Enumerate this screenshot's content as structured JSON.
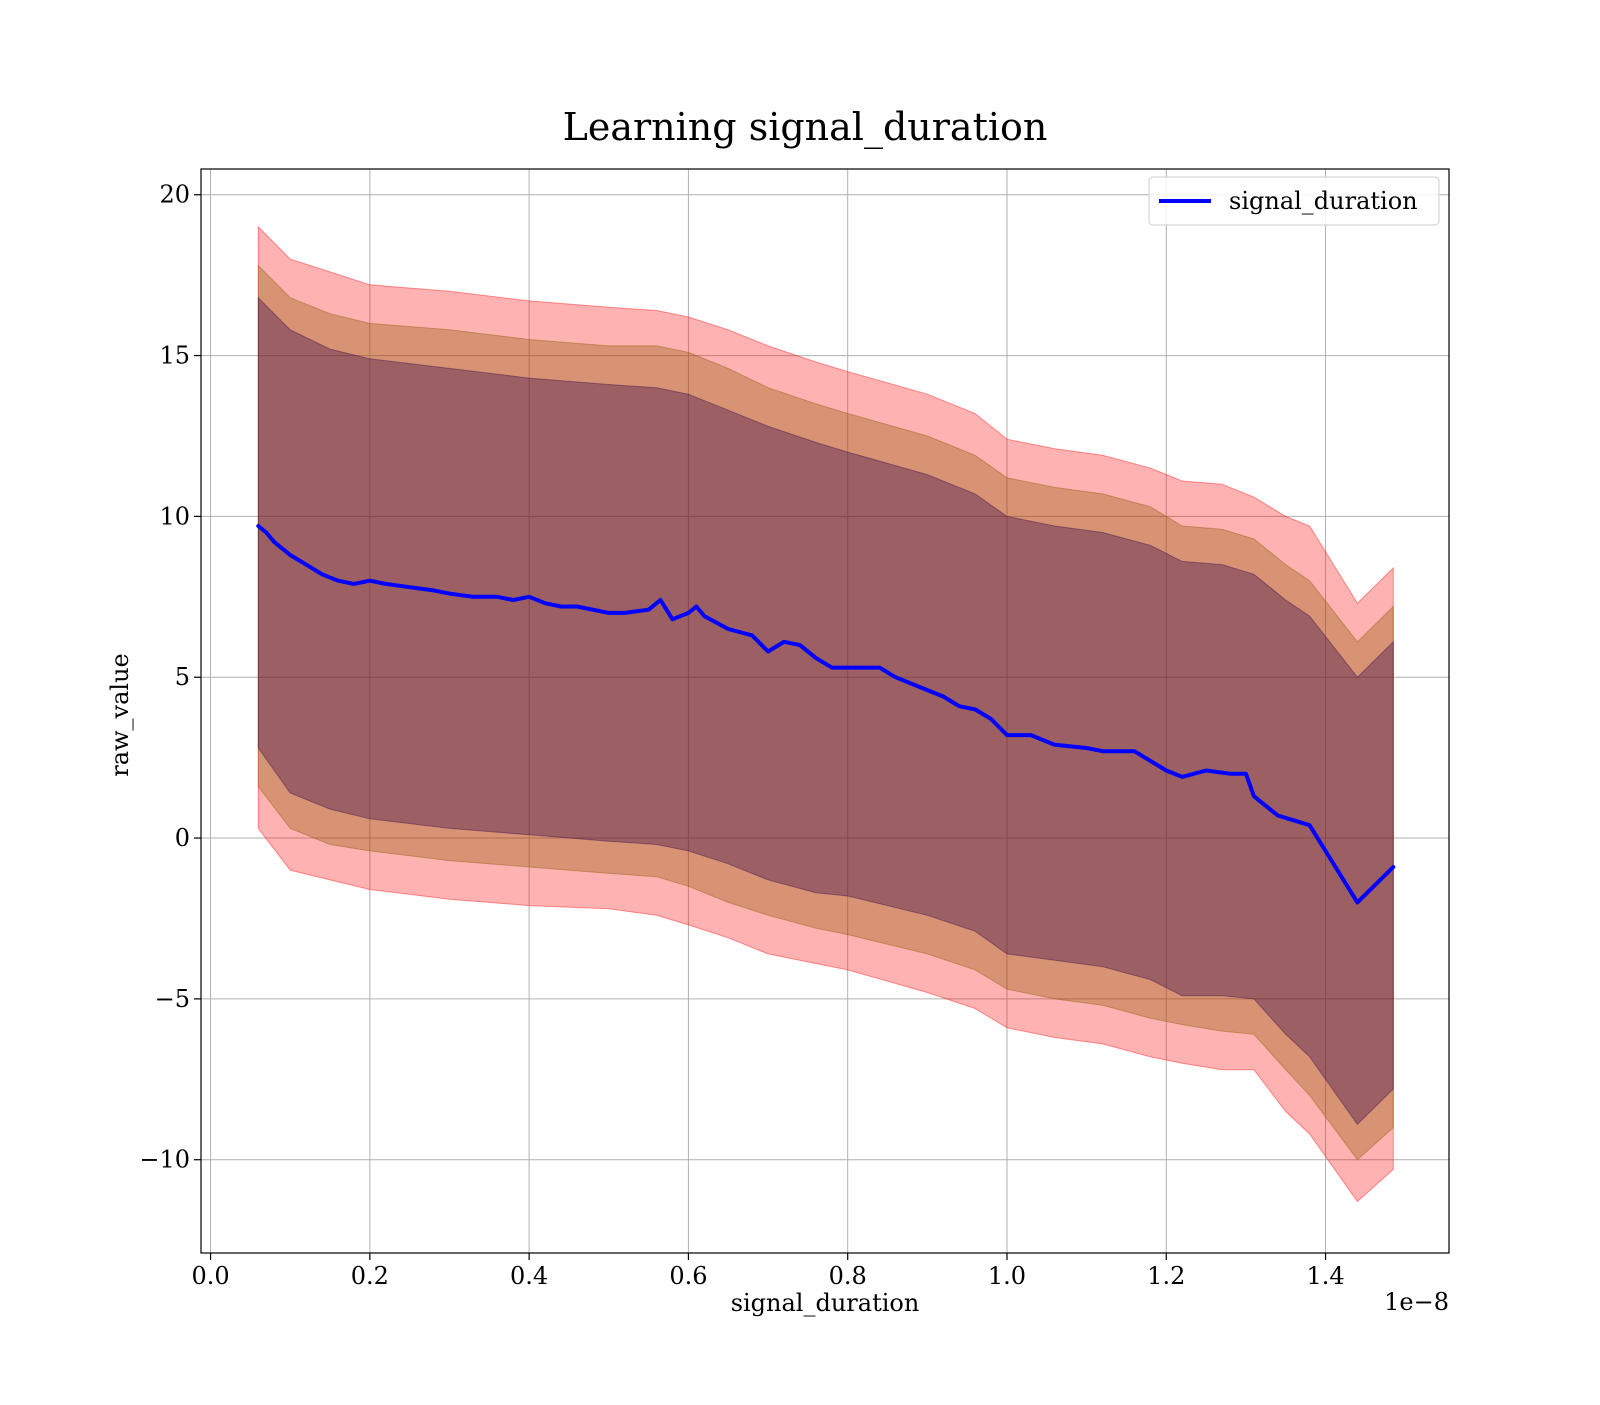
{
  "chart_data": {
    "type": "line",
    "title": "Learning signal_duration",
    "xlabel": "signal_duration",
    "ylabel": "raw_value",
    "x_offset_label": "1e−8",
    "xlim": [
      -0.012,
      1.555
    ],
    "ylim": [
      -12.9,
      20.8
    ],
    "x_ticks": [
      0.0,
      0.2,
      0.4,
      0.6,
      0.8,
      1.0,
      1.2,
      1.4
    ],
    "x_tick_labels": [
      "0.0",
      "0.2",
      "0.4",
      "0.6",
      "0.8",
      "1.0",
      "1.2",
      "1.4"
    ],
    "y_ticks": [
      -10,
      -5,
      0,
      5,
      10,
      15,
      20
    ],
    "y_tick_labels": [
      "−10",
      "−5",
      "0",
      "5",
      "10",
      "15",
      "20"
    ],
    "grid": true,
    "legend": {
      "position": "top-right",
      "entries": [
        "signal_duration"
      ]
    },
    "colors": {
      "line": "#0000ff",
      "band_outer": "#ff0000",
      "band_middle": "#8b5a00",
      "band_inner": "#3a0a4a"
    },
    "series": [
      {
        "name": "signal_duration",
        "x": [
          0.06,
          0.07,
          0.08,
          0.1,
          0.12,
          0.14,
          0.16,
          0.18,
          0.2,
          0.22,
          0.25,
          0.28,
          0.3,
          0.33,
          0.36,
          0.38,
          0.4,
          0.42,
          0.44,
          0.46,
          0.5,
          0.52,
          0.55,
          0.565,
          0.58,
          0.6,
          0.61,
          0.62,
          0.65,
          0.68,
          0.7,
          0.72,
          0.74,
          0.76,
          0.78,
          0.8,
          0.84,
          0.86,
          0.9,
          0.92,
          0.94,
          0.96,
          0.98,
          1.0,
          1.03,
          1.06,
          1.1,
          1.12,
          1.14,
          1.16,
          1.2,
          1.22,
          1.25,
          1.28,
          1.3,
          1.31,
          1.34,
          1.38,
          1.41,
          1.44,
          1.485
        ],
        "values": [
          9.7,
          9.5,
          9.2,
          8.8,
          8.5,
          8.2,
          8.0,
          7.9,
          8.0,
          7.9,
          7.8,
          7.7,
          7.6,
          7.5,
          7.5,
          7.4,
          7.5,
          7.3,
          7.2,
          7.2,
          7.0,
          7.0,
          7.1,
          7.4,
          6.8,
          7.0,
          7.2,
          6.9,
          6.5,
          6.3,
          5.8,
          6.1,
          6.0,
          5.6,
          5.3,
          5.3,
          5.3,
          5.0,
          4.6,
          4.4,
          4.1,
          4.0,
          3.7,
          3.2,
          3.2,
          2.9,
          2.8,
          2.7,
          2.7,
          2.7,
          2.1,
          1.9,
          2.1,
          2.0,
          2.0,
          1.3,
          0.7,
          0.4,
          -0.8,
          -2.0,
          -0.9
        ]
      }
    ],
    "bands": [
      {
        "name": "outer",
        "x": [
          0.06,
          0.1,
          0.15,
          0.2,
          0.3,
          0.4,
          0.5,
          0.56,
          0.6,
          0.65,
          0.7,
          0.76,
          0.8,
          0.9,
          0.96,
          1.0,
          1.06,
          1.12,
          1.18,
          1.22,
          1.27,
          1.31,
          1.35,
          1.38,
          1.44,
          1.485
        ],
        "upper": [
          19.0,
          18.0,
          17.6,
          17.2,
          17.0,
          16.7,
          16.5,
          16.4,
          16.2,
          15.8,
          15.3,
          14.8,
          14.5,
          13.8,
          13.2,
          12.4,
          12.1,
          11.9,
          11.5,
          11.1,
          11.0,
          10.6,
          10.0,
          9.7,
          7.3,
          8.4
        ],
        "lower": [
          0.3,
          -1.0,
          -1.3,
          -1.6,
          -1.9,
          -2.1,
          -2.2,
          -2.4,
          -2.7,
          -3.1,
          -3.6,
          -3.9,
          -4.1,
          -4.8,
          -5.3,
          -5.9,
          -6.2,
          -6.4,
          -6.8,
          -7.0,
          -7.2,
          -7.2,
          -8.5,
          -9.2,
          -11.3,
          -10.3
        ]
      },
      {
        "name": "middle",
        "x": [
          0.06,
          0.1,
          0.15,
          0.2,
          0.3,
          0.4,
          0.5,
          0.56,
          0.6,
          0.65,
          0.7,
          0.76,
          0.8,
          0.9,
          0.96,
          1.0,
          1.06,
          1.12,
          1.18,
          1.22,
          1.27,
          1.31,
          1.35,
          1.38,
          1.44,
          1.485
        ],
        "upper": [
          17.8,
          16.8,
          16.3,
          16.0,
          15.8,
          15.5,
          15.3,
          15.3,
          15.1,
          14.6,
          14.0,
          13.5,
          13.2,
          12.5,
          11.9,
          11.2,
          10.9,
          10.7,
          10.3,
          9.7,
          9.6,
          9.3,
          8.5,
          8.0,
          6.1,
          7.2
        ],
        "lower": [
          1.6,
          0.3,
          -0.2,
          -0.4,
          -0.7,
          -0.9,
          -1.1,
          -1.2,
          -1.5,
          -2.0,
          -2.4,
          -2.8,
          -3.0,
          -3.6,
          -4.1,
          -4.7,
          -5.0,
          -5.2,
          -5.6,
          -5.8,
          -6.0,
          -6.1,
          -7.2,
          -8.0,
          -10.0,
          -9.0
        ]
      },
      {
        "name": "inner",
        "x": [
          0.06,
          0.1,
          0.15,
          0.2,
          0.3,
          0.4,
          0.5,
          0.56,
          0.6,
          0.65,
          0.7,
          0.76,
          0.8,
          0.9,
          0.96,
          1.0,
          1.06,
          1.12,
          1.18,
          1.22,
          1.27,
          1.31,
          1.35,
          1.38,
          1.44,
          1.485
        ],
        "upper": [
          16.8,
          15.8,
          15.2,
          14.9,
          14.6,
          14.3,
          14.1,
          14.0,
          13.8,
          13.3,
          12.8,
          12.3,
          12.0,
          11.3,
          10.7,
          10.0,
          9.7,
          9.5,
          9.1,
          8.6,
          8.5,
          8.2,
          7.4,
          6.9,
          5.0,
          6.1
        ],
        "lower": [
          2.8,
          1.4,
          0.9,
          0.6,
          0.3,
          0.1,
          -0.1,
          -0.2,
          -0.4,
          -0.8,
          -1.3,
          -1.7,
          -1.8,
          -2.4,
          -2.9,
          -3.6,
          -3.8,
          -4.0,
          -4.4,
          -4.9,
          -4.9,
          -5.0,
          -6.1,
          -6.8,
          -8.9,
          -7.8
        ]
      }
    ]
  }
}
